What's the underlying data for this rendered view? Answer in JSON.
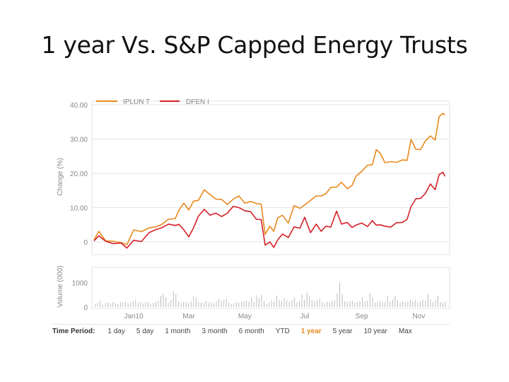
{
  "slide": {
    "title": "1 year Vs. S&P Capped Energy Trusts"
  },
  "legend": {
    "series_1_label": "IPLUN T",
    "series_2_label": "DFEN I"
  },
  "axes": {
    "price_ylabel": "Change (%)",
    "volume_ylabel": "Volume (000)",
    "price_ticks": [
      "40.00",
      "30.00",
      "20.00",
      "10.00",
      "0"
    ],
    "volume_ticks": [
      "1000",
      "0"
    ],
    "x_ticks": [
      "Jan10",
      "Mar",
      "May",
      "Jul",
      "Sep",
      "Nov"
    ]
  },
  "time_period": {
    "label": "Time Period:",
    "options": [
      "1 day",
      "5 day",
      "1 month",
      "3 month",
      "6 month",
      "YTD",
      "1 year",
      "5 year",
      "10 year",
      "Max"
    ],
    "active": "1 year"
  },
  "colors": {
    "series_1": "#e8891d",
    "series_2": "#d42028",
    "volume": "#bbbbbb",
    "grid": "#e6e6e6"
  },
  "chart_data": {
    "type": "line",
    "ylim": [
      0,
      40
    ],
    "xlim": [
      "2009-11-30",
      "2010-11-30"
    ],
    "series": [
      {
        "name": "IPLUN T",
        "points": [
          [
            "2009-11-30",
            0.6
          ],
          [
            "2009-12-05",
            3.1
          ],
          [
            "2009-12-12",
            0.3
          ],
          [
            "2009-12-20",
            0.2
          ],
          [
            "2009-12-28",
            -0.2
          ],
          [
            "2010-01-03",
            -0.8
          ],
          [
            "2010-01-10",
            3.5
          ],
          [
            "2010-01-18",
            3.0
          ],
          [
            "2010-01-26",
            4.1
          ],
          [
            "2010-02-02",
            4.4
          ],
          [
            "2010-02-08",
            5.1
          ],
          [
            "2010-02-15",
            6.6
          ],
          [
            "2010-02-22",
            6.8
          ],
          [
            "2010-02-26",
            9.3
          ],
          [
            "2010-03-03",
            11.3
          ],
          [
            "2010-03-08",
            9.3
          ],
          [
            "2010-03-13",
            11.9
          ],
          [
            "2010-03-18",
            12.1
          ],
          [
            "2010-03-24",
            15.2
          ],
          [
            "2010-03-30",
            13.8
          ],
          [
            "2010-04-05",
            12.5
          ],
          [
            "2010-04-11",
            12.4
          ],
          [
            "2010-04-17",
            10.9
          ],
          [
            "2010-04-23",
            12.5
          ],
          [
            "2010-04-29",
            13.4
          ],
          [
            "2010-05-05",
            11.3
          ],
          [
            "2010-05-11",
            11.8
          ],
          [
            "2010-05-17",
            11.2
          ],
          [
            "2010-05-22",
            11.0
          ],
          [
            "2010-05-26",
            2.2
          ],
          [
            "2010-05-31",
            4.6
          ],
          [
            "2010-06-04",
            3.1
          ],
          [
            "2010-06-08",
            7.0
          ],
          [
            "2010-06-13",
            7.8
          ],
          [
            "2010-06-19",
            5.5
          ],
          [
            "2010-06-25",
            10.6
          ],
          [
            "2010-07-01",
            9.8
          ],
          [
            "2010-07-06",
            10.8
          ],
          [
            "2010-07-12",
            12.1
          ],
          [
            "2010-07-18",
            13.4
          ],
          [
            "2010-07-23",
            13.4
          ],
          [
            "2010-07-28",
            14.1
          ],
          [
            "2010-08-02",
            15.9
          ],
          [
            "2010-08-08",
            16.0
          ],
          [
            "2010-08-13",
            17.4
          ],
          [
            "2010-08-19",
            15.5
          ],
          [
            "2010-08-24",
            16.5
          ],
          [
            "2010-08-28",
            19.1
          ],
          [
            "2010-09-03",
            20.6
          ],
          [
            "2010-09-09",
            22.4
          ],
          [
            "2010-09-14",
            22.5
          ],
          [
            "2010-09-18",
            26.9
          ],
          [
            "2010-09-22",
            25.9
          ],
          [
            "2010-09-27",
            23.1
          ],
          [
            "2010-10-03",
            23.4
          ],
          [
            "2010-10-09",
            23.2
          ],
          [
            "2010-10-15",
            23.9
          ],
          [
            "2010-10-20",
            23.8
          ],
          [
            "2010-10-24",
            29.9
          ],
          [
            "2010-10-29",
            27.0
          ],
          [
            "2010-11-03",
            26.9
          ],
          [
            "2010-11-08",
            29.5
          ],
          [
            "2010-11-13",
            30.9
          ],
          [
            "2010-11-18",
            29.7
          ],
          [
            "2010-11-22",
            36.5
          ],
          [
            "2010-11-26",
            37.5
          ],
          [
            "2010-11-28",
            37.0
          ]
        ]
      },
      {
        "name": "DFEN I",
        "points": [
          [
            "2009-11-30",
            0.3
          ],
          [
            "2009-12-05",
            1.8
          ],
          [
            "2009-12-12",
            0.2
          ],
          [
            "2009-12-20",
            -0.5
          ],
          [
            "2009-12-28",
            -0.3
          ],
          [
            "2010-01-03",
            -1.8
          ],
          [
            "2010-01-10",
            0.5
          ],
          [
            "2010-01-18",
            0.1
          ],
          [
            "2010-01-26",
            2.7
          ],
          [
            "2010-02-02",
            3.6
          ],
          [
            "2010-02-08",
            4.1
          ],
          [
            "2010-02-15",
            5.2
          ],
          [
            "2010-02-22",
            4.8
          ],
          [
            "2010-02-26",
            5.1
          ],
          [
            "2010-03-03",
            3.5
          ],
          [
            "2010-03-08",
            1.5
          ],
          [
            "2010-03-13",
            4.1
          ],
          [
            "2010-03-18",
            7.5
          ],
          [
            "2010-03-24",
            9.5
          ],
          [
            "2010-03-30",
            7.8
          ],
          [
            "2010-04-05",
            8.4
          ],
          [
            "2010-04-11",
            7.4
          ],
          [
            "2010-04-17",
            8.4
          ],
          [
            "2010-04-23",
            10.4
          ],
          [
            "2010-04-29",
            10.0
          ],
          [
            "2010-05-05",
            9.1
          ],
          [
            "2010-05-11",
            8.8
          ],
          [
            "2010-05-17",
            6.6
          ],
          [
            "2010-05-22",
            6.5
          ],
          [
            "2010-05-26",
            -0.9
          ],
          [
            "2010-05-31",
            0.0
          ],
          [
            "2010-06-04",
            -1.6
          ],
          [
            "2010-06-08",
            0.6
          ],
          [
            "2010-06-13",
            2.3
          ],
          [
            "2010-06-19",
            1.3
          ],
          [
            "2010-06-25",
            4.4
          ],
          [
            "2010-07-01",
            4.0
          ],
          [
            "2010-07-06",
            7.2
          ],
          [
            "2010-07-12",
            2.7
          ],
          [
            "2010-07-18",
            5.2
          ],
          [
            "2010-07-23",
            3.1
          ],
          [
            "2010-07-28",
            4.6
          ],
          [
            "2010-08-02",
            4.3
          ],
          [
            "2010-08-08",
            9.0
          ],
          [
            "2010-08-13",
            5.2
          ],
          [
            "2010-08-19",
            5.7
          ],
          [
            "2010-08-24",
            4.2
          ],
          [
            "2010-08-28",
            4.9
          ],
          [
            "2010-09-03",
            5.5
          ],
          [
            "2010-09-09",
            4.5
          ],
          [
            "2010-09-14",
            6.2
          ],
          [
            "2010-09-18",
            4.9
          ],
          [
            "2010-09-22",
            5.0
          ],
          [
            "2010-09-27",
            4.6
          ],
          [
            "2010-10-03",
            4.3
          ],
          [
            "2010-10-09",
            5.6
          ],
          [
            "2010-10-15",
            5.7
          ],
          [
            "2010-10-20",
            6.6
          ],
          [
            "2010-10-24",
            10.3
          ],
          [
            "2010-10-29",
            12.6
          ],
          [
            "2010-11-03",
            12.7
          ],
          [
            "2010-11-08",
            14.2
          ],
          [
            "2010-11-13",
            16.9
          ],
          [
            "2010-11-18",
            15.2
          ],
          [
            "2010-11-22",
            19.6
          ],
          [
            "2010-11-26",
            20.3
          ],
          [
            "2010-11-28",
            19.1
          ]
        ]
      }
    ],
    "volume": {
      "ylim": [
        0,
        1500
      ],
      "values": [
        120,
        170,
        260,
        90,
        160,
        180,
        140,
        200,
        160,
        120,
        180,
        190,
        210,
        140,
        170,
        240,
        280,
        160,
        200,
        140,
        220,
        180,
        130,
        170,
        210,
        250,
        460,
        540,
        390,
        180,
        290,
        640,
        520,
        230,
        180,
        190,
        220,
        160,
        240,
        430,
        380,
        210,
        180,
        180,
        240,
        180,
        200,
        160,
        230,
        320,
        260,
        280,
        330,
        180,
        120,
        140,
        200,
        170,
        220,
        230,
        260,
        240,
        380,
        210,
        470,
        380,
        500,
        260,
        130,
        200,
        280,
        220,
        470,
        300,
        240,
        360,
        280,
        210,
        270,
        380,
        190,
        240,
        510,
        300,
        600,
        470,
        300,
        240,
        290,
        350,
        210,
        160,
        230,
        190,
        240,
        270,
        560,
        1000,
        540,
        230,
        200,
        240,
        250,
        180,
        200,
        220,
        390,
        240,
        260,
        580,
        380,
        190,
        220,
        240,
        200,
        210,
        460,
        230,
        300,
        450,
        280,
        170,
        240,
        220,
        210,
        300,
        240,
        280,
        200,
        240,
        310,
        260,
        520,
        330,
        210,
        280,
        460,
        200,
        170,
        220
      ]
    }
  }
}
